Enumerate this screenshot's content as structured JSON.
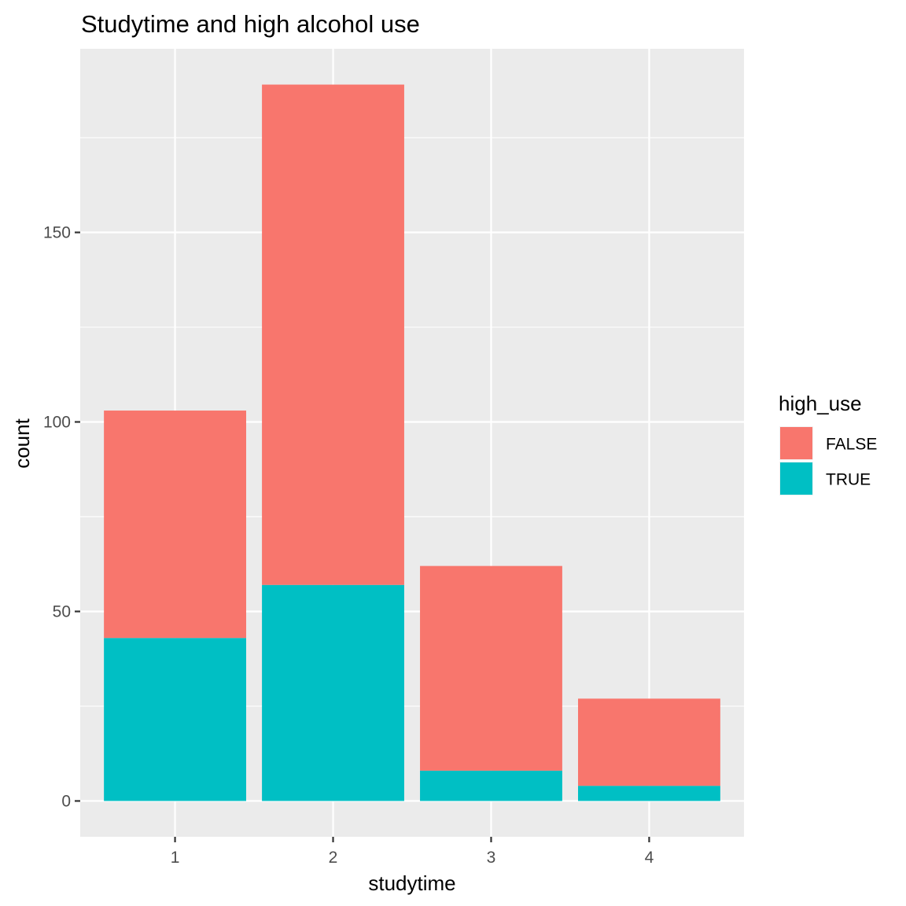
{
  "chart_data": {
    "type": "bar",
    "stacked": true,
    "title": "Studytime and high alcohol use",
    "xlabel": "studytime",
    "ylabel": "count",
    "categories": [
      "1",
      "2",
      "3",
      "4"
    ],
    "series": [
      {
        "name": "FALSE",
        "color": "#F8766D",
        "values": [
          60,
          132,
          54,
          23
        ]
      },
      {
        "name": "TRUE",
        "color": "#00BFC4",
        "values": [
          43,
          57,
          8,
          4
        ]
      }
    ],
    "yticks": [
      0,
      50,
      100,
      150
    ],
    "ylim": [
      -9.45,
      198.45
    ],
    "grid": true,
    "panel_background": "#EBEBEB",
    "legend": {
      "title": "high_use",
      "position": "right"
    }
  }
}
